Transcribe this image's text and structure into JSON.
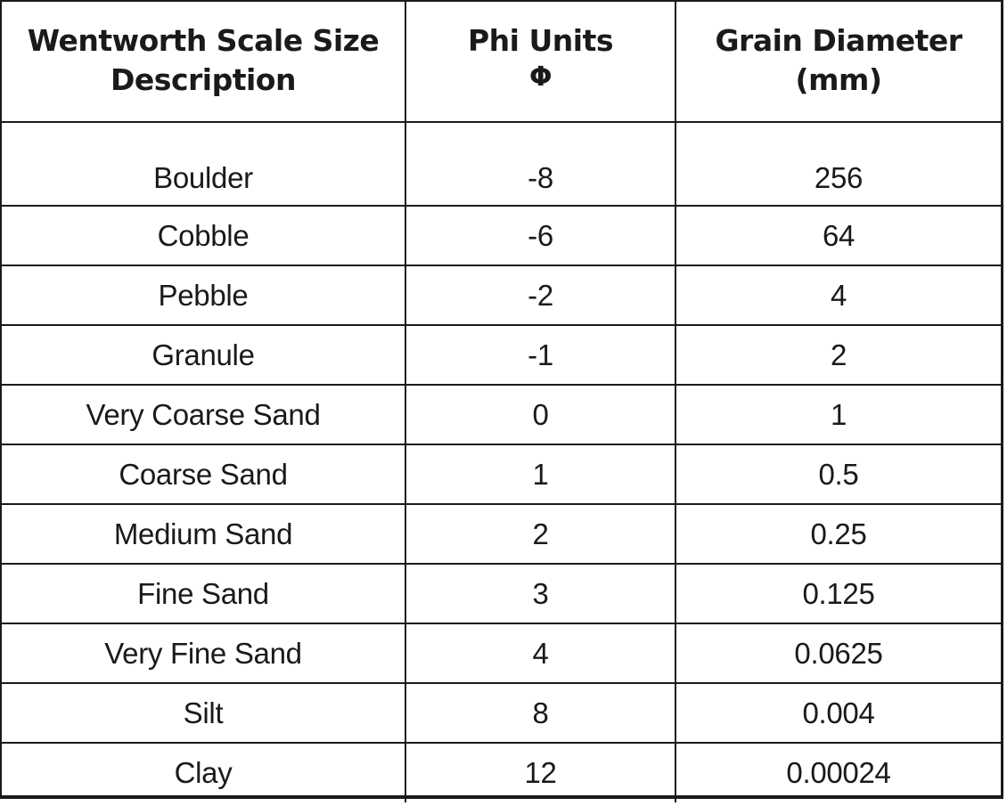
{
  "header": {
    "col1_line1": "Wentworth Scale Size",
    "col1_line2": "Description",
    "col2_line1": "Phi Units",
    "col2_line2": "Φ",
    "col3_line1": "Grain Diameter",
    "col3_line2": "(mm)"
  },
  "rows": [
    {
      "description": "Boulder",
      "phi": "-8",
      "diameter": "256"
    },
    {
      "description": "Cobble",
      "phi": "-6",
      "diameter": "64"
    },
    {
      "description": "Pebble",
      "phi": "-2",
      "diameter": "4"
    },
    {
      "description": "Granule",
      "phi": "-1",
      "diameter": "2"
    },
    {
      "description": "Very Coarse Sand",
      "phi": "0",
      "diameter": "1"
    },
    {
      "description": "Coarse Sand",
      "phi": "1",
      "diameter": "0.5"
    },
    {
      "description": "Medium Sand",
      "phi": "2",
      "diameter": "0.25"
    },
    {
      "description": "Fine Sand",
      "phi": "3",
      "diameter": "0.125"
    },
    {
      "description": "Very Fine Sand",
      "phi": "4",
      "diameter": "0.0625"
    },
    {
      "description": "Silt",
      "phi": "8",
      "diameter": "0.004"
    },
    {
      "description": "Clay",
      "phi": "12",
      "diameter": "0.00024"
    }
  ]
}
